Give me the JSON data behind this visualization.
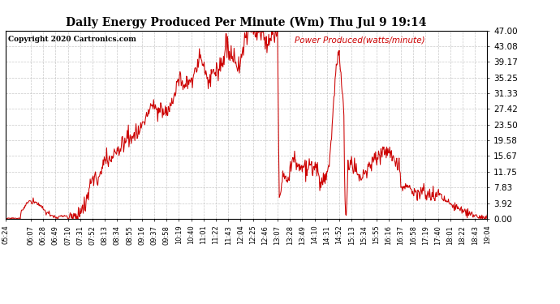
{
  "title": "Daily Energy Produced Per Minute (Wm) Thu Jul 9 19:14",
  "legend_label": "Power Produced(watts/minute)",
  "copyright": "Copyright 2020 Cartronics.com",
  "line_color": "#cc0000",
  "background_color": "#ffffff",
  "grid_color": "#aaaaaa",
  "ylim": [
    0,
    47.0
  ],
  "yticks": [
    0.0,
    3.92,
    7.83,
    11.75,
    15.67,
    19.58,
    23.5,
    27.42,
    31.33,
    35.25,
    39.17,
    43.08,
    47.0
  ],
  "xtick_labels": [
    "05:24",
    "06:07",
    "06:28",
    "06:49",
    "07:10",
    "07:31",
    "07:52",
    "08:13",
    "08:34",
    "08:55",
    "09:16",
    "09:37",
    "09:58",
    "10:19",
    "10:40",
    "11:01",
    "11:22",
    "11:43",
    "12:04",
    "12:25",
    "12:46",
    "13:07",
    "13:28",
    "13:49",
    "14:10",
    "14:31",
    "14:52",
    "15:13",
    "15:34",
    "15:55",
    "16:16",
    "16:37",
    "16:58",
    "17:19",
    "17:40",
    "18:01",
    "18:22",
    "18:43",
    "19:04"
  ]
}
